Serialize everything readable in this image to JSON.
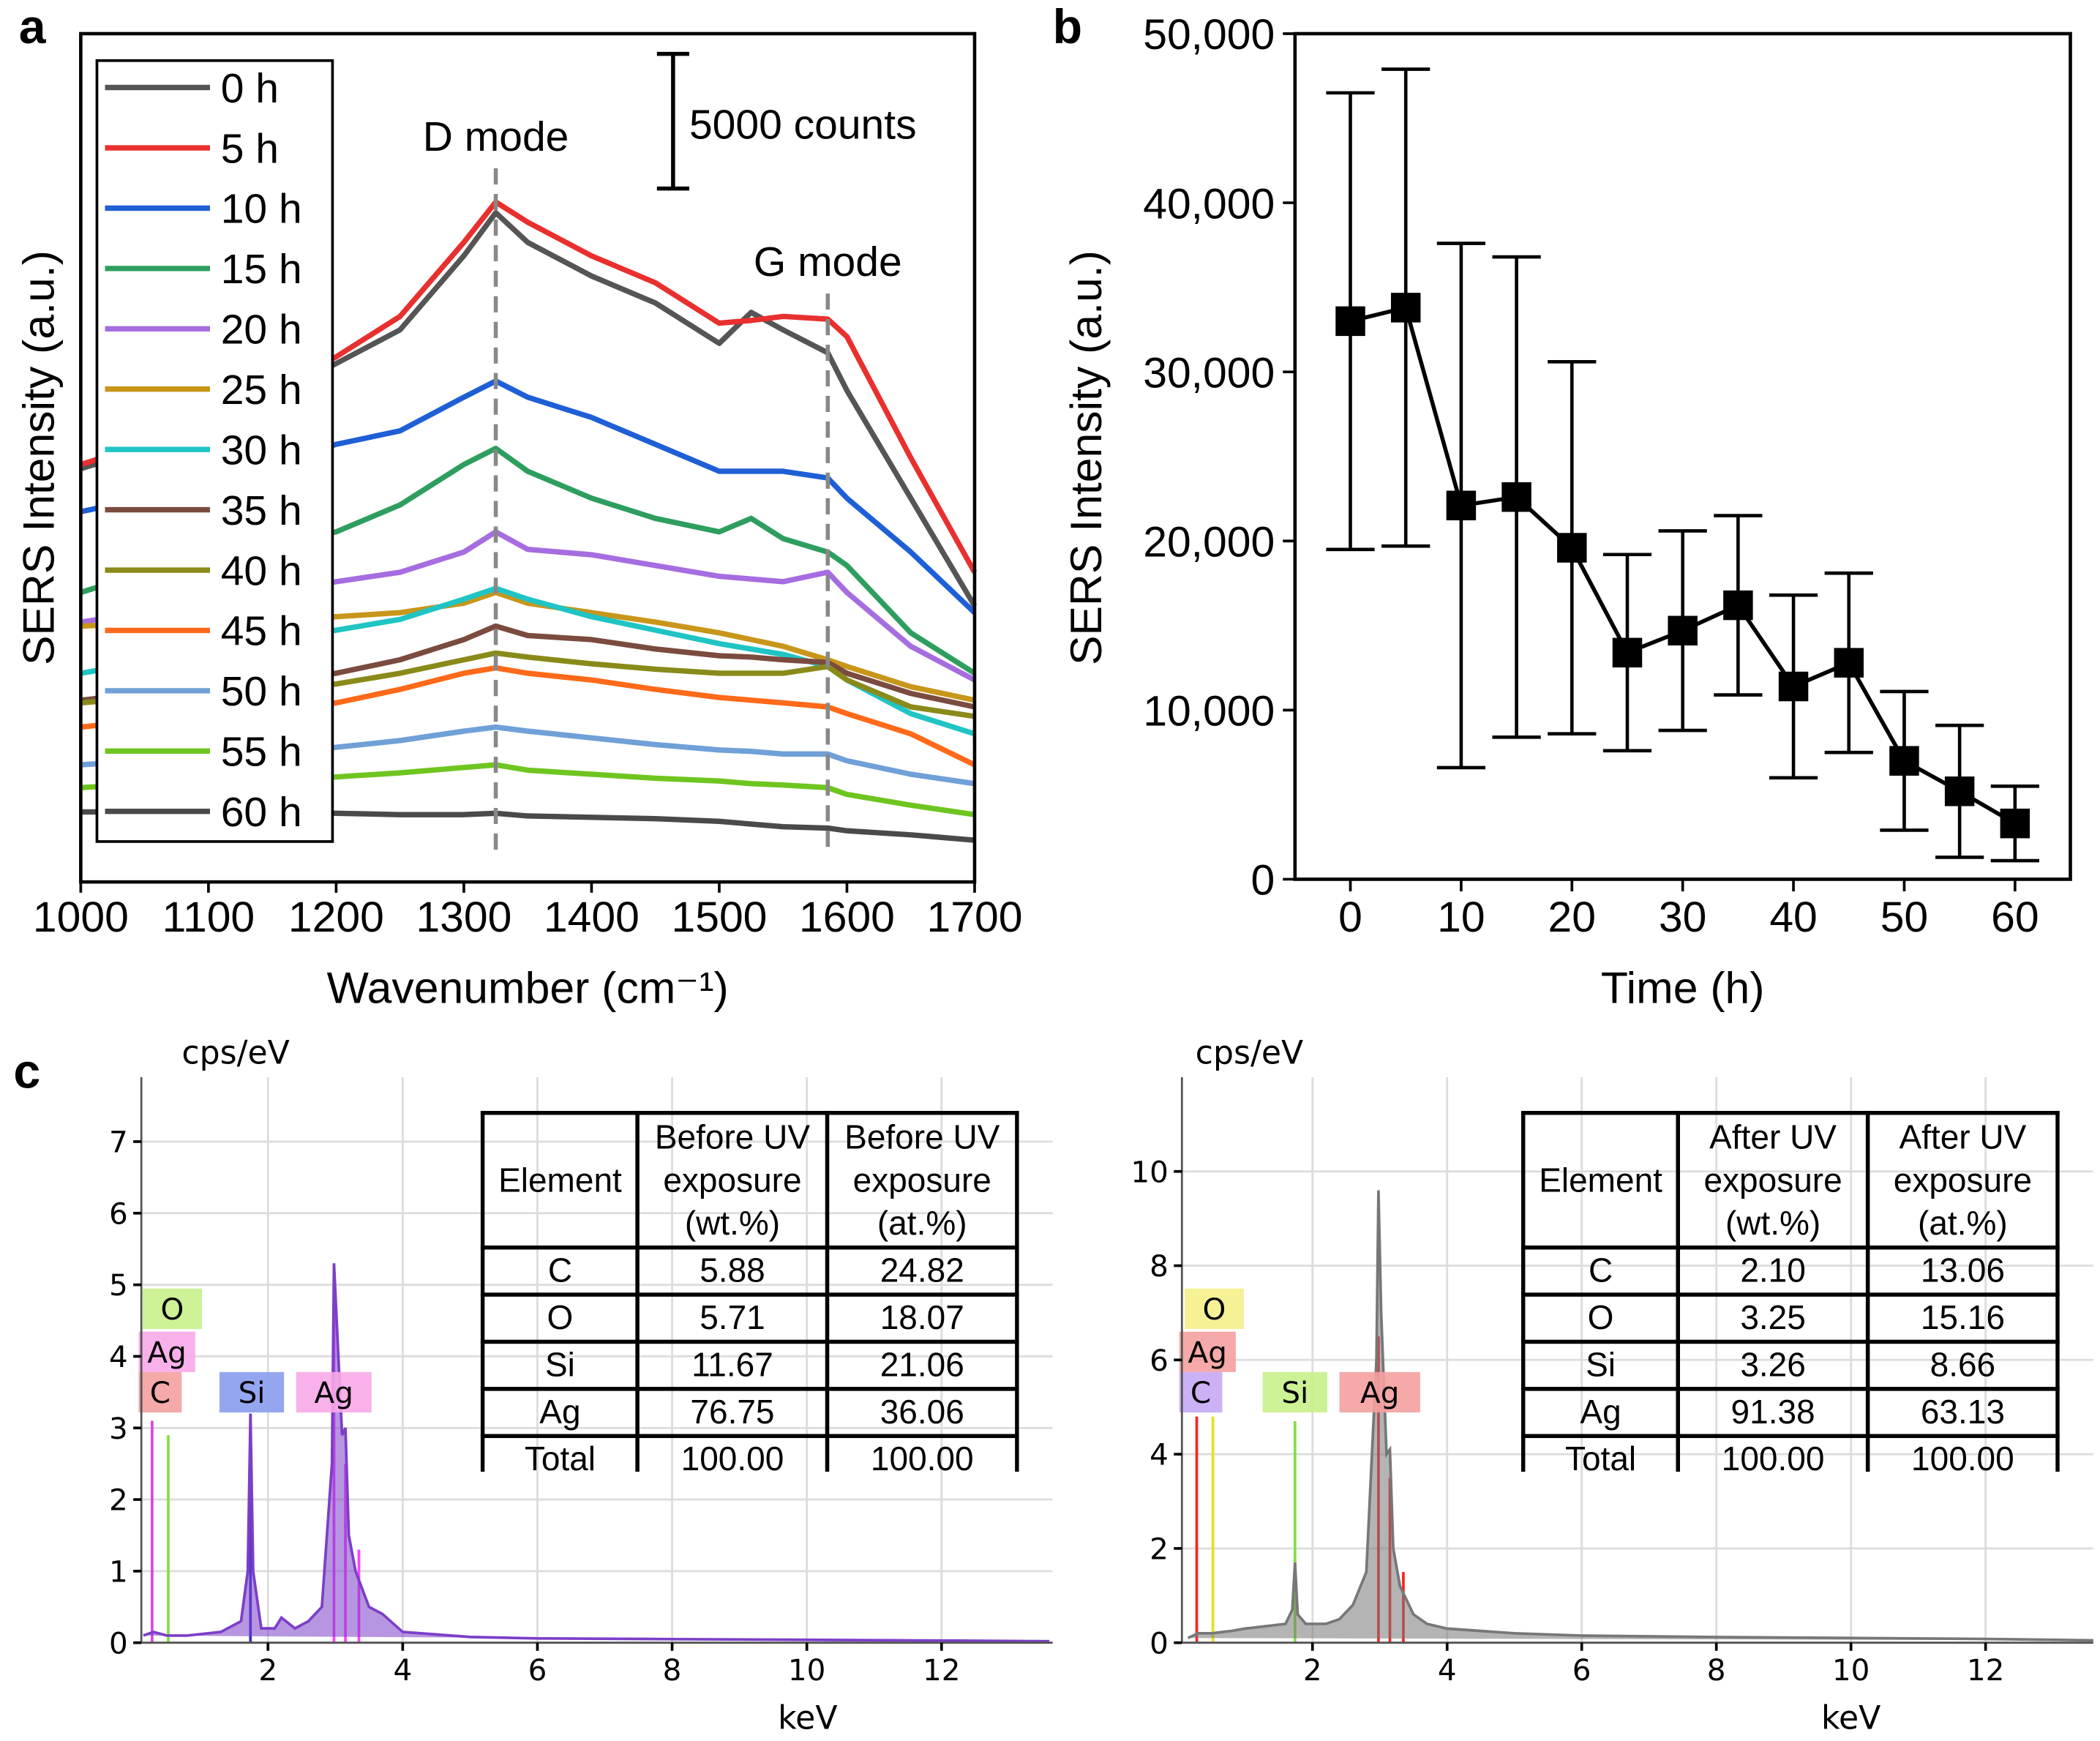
{
  "chart_data": [
    {
      "type": "line",
      "panel_label": "a",
      "xlabel": "Wavenumber (cm⁻¹)",
      "ylabel": "SERS Intensity (a.u.)",
      "x": [
        1000,
        1050,
        1100,
        1150,
        1200,
        1250,
        1300,
        1325,
        1350,
        1400,
        1450,
        1500,
        1525,
        1550,
        1585,
        1600,
        1650,
        1700
      ],
      "xlim": [
        1000,
        1700
      ],
      "ylim": [
        0,
        31500
      ],
      "xticks": [
        1000,
        1100,
        1200,
        1300,
        1400,
        1500,
        1600,
        1700
      ],
      "legend": "upper left",
      "scale_bar": {
        "value": 5000,
        "label": "5000 counts"
      },
      "annotations": [
        {
          "text": "D mode",
          "x": 1325
        },
        {
          "text": "G mode",
          "x": 1585
        }
      ],
      "series": [
        {
          "name": "0 h",
          "color": "#555555",
          "values": [
            15350,
            16050,
            17050,
            18050,
            19250,
            20500,
            23250,
            24850,
            23750,
            22500,
            21500,
            20000,
            21150,
            20500,
            19650,
            18250,
            14250,
            10250
          ]
        },
        {
          "name": "5 h",
          "color": "#e8302f",
          "values": [
            15500,
            16250,
            17250,
            18250,
            19500,
            21000,
            23750,
            25250,
            24500,
            23250,
            22250,
            20750,
            20850,
            21000,
            20900,
            20250,
            15750,
            11500
          ]
        },
        {
          "name": "10 h",
          "color": "#1f5fd6",
          "values": [
            13750,
            14250,
            14750,
            15500,
            16250,
            16750,
            18000,
            18600,
            18000,
            17250,
            16250,
            15250,
            15250,
            15250,
            15000,
            14250,
            12250,
            10000
          ]
        },
        {
          "name": "15 h",
          "color": "#2e9e5e",
          "values": [
            10750,
            11500,
            12000,
            12500,
            13000,
            14000,
            15500,
            16100,
            15250,
            14250,
            13500,
            13000,
            13500,
            12750,
            12250,
            11750,
            9250,
            7750
          ]
        },
        {
          "name": "20 h",
          "color": "#a66de0",
          "values": [
            9650,
            10000,
            10250,
            10750,
            11150,
            11500,
            12250,
            13000,
            12350,
            12150,
            11750,
            11350,
            11250,
            11150,
            11500,
            10750,
            8750,
            7500
          ]
        },
        {
          "name": "25 h",
          "color": "#c8961a",
          "values": [
            9500,
            9600,
            9650,
            9750,
            9850,
            10000,
            10350,
            10750,
            10350,
            10000,
            9650,
            9250,
            9000,
            8750,
            8250,
            8000,
            7250,
            6750
          ]
        },
        {
          "name": "30 h",
          "color": "#20c4c4",
          "values": [
            7750,
            8150,
            8500,
            8950,
            9350,
            9750,
            10500,
            10900,
            10500,
            9850,
            9350,
            8850,
            8650,
            8450,
            8000,
            7500,
            6250,
            5500
          ]
        },
        {
          "name": "35 h",
          "color": "#7b4b3f",
          "values": [
            6750,
            7000,
            7250,
            7500,
            7750,
            8250,
            9000,
            9500,
            9150,
            9000,
            8650,
            8400,
            8350,
            8250,
            8150,
            7750,
            7000,
            6500
          ]
        },
        {
          "name": "40 h",
          "color": "#8a8a1a",
          "values": [
            6650,
            6850,
            7000,
            7150,
            7350,
            7750,
            8250,
            8500,
            8350,
            8100,
            7900,
            7750,
            7750,
            7750,
            8000,
            7500,
            6500,
            6150
          ]
        },
        {
          "name": "45 h",
          "color": "#ff6a1a",
          "values": [
            5750,
            6000,
            6150,
            6350,
            6650,
            7150,
            7750,
            7950,
            7750,
            7500,
            7150,
            6850,
            6750,
            6650,
            6500,
            6250,
            5500,
            4350
          ]
        },
        {
          "name": "50 h",
          "color": "#6fa0d8",
          "values": [
            4350,
            4500,
            4650,
            4750,
            5000,
            5250,
            5600,
            5750,
            5600,
            5350,
            5100,
            4900,
            4850,
            4750,
            4750,
            4500,
            4000,
            3650
          ]
        },
        {
          "name": "55 h",
          "color": "#6fc520",
          "values": [
            3500,
            3650,
            3750,
            3850,
            3900,
            4050,
            4250,
            4350,
            4150,
            4000,
            3850,
            3750,
            3650,
            3600,
            3500,
            3250,
            2850,
            2500
          ]
        },
        {
          "name": "60 h",
          "color": "#4a4a4a",
          "values": [
            2600,
            2600,
            2600,
            2600,
            2550,
            2500,
            2500,
            2550,
            2450,
            2400,
            2350,
            2250,
            2150,
            2050,
            2000,
            1900,
            1750,
            1550
          ]
        }
      ]
    },
    {
      "type": "errorbar",
      "panel_label": "b",
      "xlabel": "Time (h)",
      "ylabel": "SERS Intensity (a.u.)",
      "x": [
        0,
        5,
        10,
        15,
        20,
        25,
        30,
        35,
        40,
        45,
        50,
        55,
        60
      ],
      "values": [
        33000,
        33800,
        22100,
        22600,
        19600,
        13400,
        14700,
        16200,
        11400,
        12800,
        7000,
        5200,
        3300
      ],
      "errors": [
        13500,
        14100,
        15500,
        14200,
        11000,
        5800,
        5900,
        5300,
        5400,
        5300,
        4100,
        3900,
        2200
      ],
      "color": "#000000",
      "xlim": [
        -5,
        65
      ],
      "ylim": [
        0,
        50000
      ],
      "xticks": [
        0,
        10,
        20,
        30,
        40,
        50,
        60
      ],
      "yticks": [
        0,
        {
          "value": 10000,
          "label": "10,000"
        },
        {
          "value": 20000,
          "label": "20,000"
        },
        {
          "value": 30000,
          "label": "30,000"
        },
        {
          "value": 40000,
          "label": "40,000"
        },
        {
          "value": 50000,
          "label": "50,000"
        }
      ]
    },
    {
      "type": "spectrum",
      "panel_label": "c",
      "xlabel": "keV",
      "ylabel": "cps/eV",
      "color": "#7b3fc8",
      "grid": true,
      "x": [
        0.15,
        0.3,
        0.5,
        0.8,
        1.0,
        1.3,
        1.6,
        1.7,
        1.74,
        1.78,
        1.9,
        2.1,
        2.2,
        2.4,
        2.6,
        2.8,
        2.95,
        2.98,
        3.02,
        3.1,
        3.15,
        3.2,
        3.3,
        3.5,
        3.7,
        4,
        5,
        6,
        8,
        10,
        12,
        13.6
      ],
      "values": [
        0.1,
        0.15,
        0.1,
        0.1,
        0.12,
        0.15,
        0.3,
        1.0,
        3.2,
        1.0,
        0.2,
        0.2,
        0.35,
        0.2,
        0.3,
        0.5,
        2.5,
        5.3,
        4.5,
        2.9,
        3.0,
        1.5,
        1.0,
        0.5,
        0.4,
        0.15,
        0.08,
        0.06,
        0.05,
        0.04,
        0.03,
        0.02
      ],
      "xlim": [
        0.12,
        13.65
      ],
      "ylim": [
        0,
        7.9
      ],
      "xticks": [
        2,
        4,
        6,
        8,
        10,
        12
      ],
      "yticks": [
        0,
        1,
        2,
        3,
        4,
        5,
        6,
        7
      ],
      "peak_lines": {
        "x": [
          0.28,
          0.52,
          1.74,
          2.98,
          3.15,
          3.35
        ],
        "values": [
          3.1,
          2.9,
          3.2,
          4.6,
          2.5,
          1.3
        ],
        "colors": [
          "#e040e0",
          "#80e040",
          "#3030d0",
          "#ff40ff",
          "#ff40ff",
          "#ff40ff"
        ]
      },
      "element_labels": [
        {
          "text": "O",
          "color": "#c8f08a"
        },
        {
          "text": "Ag",
          "color": "#f7a8e8"
        },
        {
          "text": "C",
          "color": "#f4a0a0"
        },
        {
          "text": "Si",
          "color": "#8a9cf0"
        },
        {
          "text": "Ag",
          "color": "#f7a8e8"
        }
      ],
      "table": {
        "header": [
          "Element",
          "Before UV exposure (wt.%)",
          "Before UV exposure (at.%)"
        ],
        "rows": [
          [
            "C",
            "5.88",
            "24.82"
          ],
          [
            "O",
            "5.71",
            "18.07"
          ],
          [
            "Si",
            "11.67",
            "21.06"
          ],
          [
            "Ag",
            "76.75",
            "36.06"
          ],
          [
            "Total",
            "100.00",
            "100.00"
          ]
        ]
      }
    },
    {
      "type": "spectrum",
      "xlabel": "keV",
      "ylabel": "cps/eV",
      "color": "#777777",
      "grid": true,
      "x": [
        0.15,
        0.3,
        0.5,
        0.8,
        1.0,
        1.3,
        1.6,
        1.7,
        1.74,
        1.78,
        1.9,
        2.1,
        2.2,
        2.4,
        2.6,
        2.8,
        2.95,
        2.98,
        3.02,
        3.1,
        3.15,
        3.2,
        3.3,
        3.5,
        3.7,
        4,
        5,
        6,
        8,
        10,
        12,
        13.6
      ],
      "values": [
        0.1,
        0.2,
        0.2,
        0.25,
        0.3,
        0.35,
        0.4,
        0.7,
        1.7,
        0.6,
        0.4,
        0.4,
        0.4,
        0.5,
        0.8,
        1.5,
        6,
        9.6,
        7,
        4,
        4.1,
        2,
        1.2,
        0.6,
        0.4,
        0.3,
        0.2,
        0.15,
        0.12,
        0.1,
        0.08,
        0.05
      ],
      "xlim": [
        0.06,
        13.6
      ],
      "ylim": [
        0,
        12
      ],
      "xticks": [
        2,
        4,
        6,
        8,
        10,
        12
      ],
      "yticks": [
        0,
        2,
        4,
        6,
        8,
        10
      ],
      "peak_lines": {
        "x": [
          0.28,
          0.52,
          1.74,
          2.98,
          3.15,
          3.35
        ],
        "values": [
          4.8,
          4.8,
          4.7,
          6.5,
          3.5,
          1.5
        ],
        "colors": [
          "#ff2020",
          "#e8e020",
          "#80e040",
          "#ff2020",
          "#ff2020",
          "#ff2020"
        ]
      },
      "element_labels": [
        {
          "text": "O",
          "color": "#f5f08a"
        },
        {
          "text": "Ag",
          "color": "#f4a0a0"
        },
        {
          "text": "C",
          "color": "#c8a8f4"
        },
        {
          "text": "Si",
          "color": "#c8f08a"
        },
        {
          "text": "Ag",
          "color": "#f4a0a0"
        }
      ],
      "table": {
        "header": [
          "Element",
          "After UV exposure (wt.%)",
          "After UV exposure (at.%)"
        ],
        "rows": [
          [
            "C",
            "2.10",
            "13.06"
          ],
          [
            "O",
            "3.25",
            "15.16"
          ],
          [
            "Si",
            "3.26",
            "8.66"
          ],
          [
            "Ag",
            "91.38",
            "63.13"
          ],
          [
            "Total",
            "100.00",
            "100.00"
          ]
        ]
      }
    }
  ]
}
